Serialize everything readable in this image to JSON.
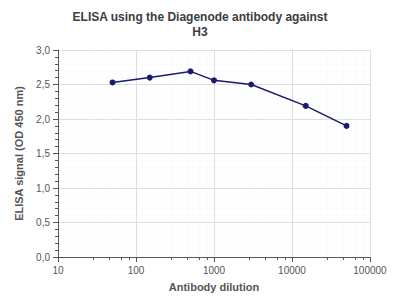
{
  "chart_data": {
    "type": "line",
    "title": "ELISA using the Diagenode antibody against\nH3",
    "xlabel": "Antibody dilution",
    "ylabel": "ELISA signal (OD 450 nm)",
    "x": [
      50,
      150,
      500,
      1000,
      3000,
      15000,
      50000
    ],
    "values": [
      2.53,
      2.6,
      2.69,
      2.56,
      2.5,
      2.19,
      1.9
    ],
    "color": "#1a1a6e",
    "marker": "circle",
    "log": "x",
    "xlim": [
      10,
      100000
    ],
    "xticks": [
      10,
      100,
      1000,
      10000,
      100000
    ],
    "ylim": [
      0.0,
      3.0
    ],
    "yticks": [
      {
        "value": 0.0,
        "label": "0,0"
      },
      {
        "value": 0.5,
        "label": "0,5"
      },
      {
        "value": 1.0,
        "label": "1,0"
      },
      {
        "value": 1.5,
        "label": "1,5"
      },
      {
        "value": 2.0,
        "label": "2,0"
      },
      {
        "value": 2.5,
        "label": "2,5"
      },
      {
        "value": 3.0,
        "label": "3,0"
      }
    ],
    "grid": true
  }
}
